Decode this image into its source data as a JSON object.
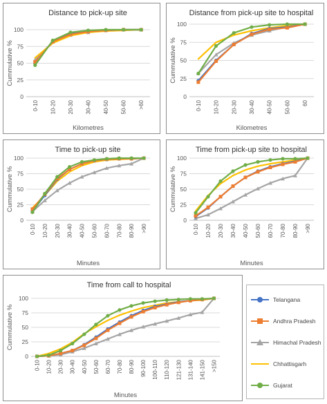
{
  "colors": {
    "Telangana": "#4472c4",
    "Andhra Pradesh": "#ed7d31",
    "Himachal Pradesh": "#a5a5a5",
    "Chhattisgarh": "#ffc000",
    "Gujarat": "#70ad47"
  },
  "legend": {
    "items": [
      {
        "name": "Telangana",
        "marker": "circle"
      },
      {
        "name": "Andhra Pradesh",
        "marker": "square"
      },
      {
        "name": "Himachal Pradesh",
        "marker": "triangle"
      },
      {
        "name": "Chhattisgarh",
        "marker": "none"
      },
      {
        "name": "Gujarat",
        "marker": "circle"
      }
    ]
  },
  "chart_data": [
    {
      "type": "line",
      "title": "Distance to pick-up site",
      "xlabel": "Kilometres",
      "ylabel": "Cummulative %",
      "ylim": [
        0,
        100
      ],
      "yticks": [
        0,
        25,
        50,
        75,
        100
      ],
      "grid": true,
      "categories": [
        "0-10",
        "10-20",
        "20-30",
        "30-40",
        "40-50",
        "50-60",
        ">60"
      ],
      "series": [
        {
          "name": "Telangana",
          "values": [
            50,
            83,
            94,
            98,
            99,
            100,
            100
          ]
        },
        {
          "name": "Andhra Pradesh",
          "values": [
            52,
            82,
            93,
            97,
            99,
            100,
            100
          ]
        },
        {
          "name": "Himachal Pradesh",
          "values": [
            55,
            82,
            92,
            96,
            99,
            100,
            100
          ]
        },
        {
          "name": "Chhattisgarh",
          "values": [
            58,
            80,
            91,
            96,
            98,
            99,
            100
          ]
        },
        {
          "name": "Gujarat",
          "values": [
            47,
            84,
            96,
            99,
            100,
            100,
            100
          ]
        }
      ]
    },
    {
      "type": "line",
      "title": "Distance from pick-up site to hospital",
      "xlabel": "Kilometres",
      "ylabel": "Cummulative %",
      "ylim": [
        0,
        100
      ],
      "yticks": [
        0,
        25,
        50,
        75,
        100
      ],
      "grid": true,
      "categories": [
        "0-10",
        "10-20",
        "20-30",
        "30-40",
        "40-50",
        "50-60",
        "60"
      ],
      "series": [
        {
          "name": "Telangana",
          "values": [
            22,
            50,
            72,
            87,
            94,
            96,
            100
          ]
        },
        {
          "name": "Andhra Pradesh",
          "values": [
            20,
            49,
            72,
            86,
            93,
            95,
            100
          ]
        },
        {
          "name": "Himachal Pradesh",
          "values": [
            32,
            58,
            74,
            85,
            91,
            96,
            100
          ]
        },
        {
          "name": "Chhattisgarh",
          "values": [
            52,
            75,
            85,
            91,
            95,
            98,
            100
          ]
        },
        {
          "name": "Gujarat",
          "values": [
            32,
            70,
            88,
            96,
            99,
            100,
            100
          ]
        }
      ]
    },
    {
      "type": "line",
      "title": "Time to pick-up site",
      "xlabel": "Minutes",
      "ylabel": "Cummulative %",
      "ylim": [
        0,
        100
      ],
      "yticks": [
        0,
        25,
        50,
        75,
        100
      ],
      "grid": true,
      "categories": [
        "0-10",
        "10-20",
        "20-30",
        "30-40",
        "40-50",
        "50-60",
        "60-70",
        "70-80",
        "80-90",
        ">90"
      ],
      "series": [
        {
          "name": "Telangana",
          "values": [
            15,
            40,
            66,
            82,
            91,
            96,
            98,
            99,
            99,
            100
          ]
        },
        {
          "name": "Andhra Pradesh",
          "values": [
            18,
            42,
            67,
            82,
            91,
            96,
            98,
            99,
            99,
            100
          ]
        },
        {
          "name": "Himachal Pradesh",
          "values": [
            14,
            32,
            48,
            60,
            70,
            77,
            84,
            88,
            91,
            100
          ]
        },
        {
          "name": "Chhattisgarh",
          "values": [
            20,
            40,
            63,
            78,
            88,
            94,
            97,
            98,
            99,
            100
          ]
        },
        {
          "name": "Gujarat",
          "values": [
            13,
            43,
            70,
            86,
            94,
            97,
            99,
            100,
            100,
            100
          ]
        }
      ]
    },
    {
      "type": "line",
      "title": "Time from pick-up site to hospital",
      "xlabel": "Minutes",
      "ylabel": "Cummulative %",
      "ylim": [
        0,
        100
      ],
      "yticks": [
        0,
        25,
        50,
        75,
        100
      ],
      "grid": true,
      "categories": [
        "0-10",
        "10-20",
        "20-30",
        "30-40",
        "40-50",
        "50-60",
        "60-70",
        "70-80",
        "80-90",
        ">90"
      ],
      "series": [
        {
          "name": "Telangana",
          "values": [
            6,
            20,
            38,
            55,
            69,
            79,
            86,
            91,
            95,
            100
          ]
        },
        {
          "name": "Andhra Pradesh",
          "values": [
            7,
            21,
            38,
            55,
            69,
            78,
            85,
            90,
            94,
            100
          ]
        },
        {
          "name": "Himachal Pradesh",
          "values": [
            3,
            9,
            19,
            30,
            41,
            51,
            60,
            67,
            72,
            100
          ]
        },
        {
          "name": "Chhattisgarh",
          "values": [
            15,
            40,
            59,
            72,
            81,
            87,
            91,
            94,
            97,
            100
          ]
        },
        {
          "name": "Gujarat",
          "values": [
            12,
            38,
            63,
            79,
            89,
            94,
            97,
            99,
            99,
            100
          ]
        }
      ]
    },
    {
      "type": "line",
      "title": "Time from call to hospital",
      "xlabel": "Minutes",
      "ylabel": "Cummulative %",
      "ylim": [
        0,
        100
      ],
      "yticks": [
        0,
        25,
        50,
        75,
        100
      ],
      "grid": true,
      "categories": [
        "0-10",
        "10-20",
        "20-30",
        "30-40",
        "40-50",
        "50-60",
        "60-70",
        "70-80",
        "80-90",
        "90-100",
        "100-110",
        "110-120",
        "121-130",
        "131-140",
        "141-150",
        ">150"
      ],
      "series": [
        {
          "name": "Telangana",
          "values": [
            0,
            1,
            5,
            10,
            20,
            33,
            47,
            59,
            70,
            79,
            86,
            90,
            94,
            96,
            98,
            100
          ]
        },
        {
          "name": "Andhra Pradesh",
          "values": [
            0,
            1,
            5,
            10,
            19,
            31,
            45,
            57,
            68,
            77,
            84,
            89,
            93,
            96,
            98,
            100
          ]
        },
        {
          "name": "Himachal Pradesh",
          "values": [
            0,
            1,
            3,
            8,
            14,
            22,
            30,
            38,
            45,
            51,
            56,
            61,
            66,
            72,
            76,
            100
          ]
        },
        {
          "name": "Chhattisgarh",
          "values": [
            0,
            5,
            13,
            24,
            39,
            51,
            62,
            71,
            78,
            84,
            88,
            92,
            94,
            96,
            97,
            100
          ]
        },
        {
          "name": "Gujarat",
          "values": [
            0,
            2,
            10,
            22,
            38,
            55,
            70,
            80,
            87,
            92,
            95,
            97,
            98,
            99,
            99,
            100
          ]
        }
      ]
    }
  ]
}
